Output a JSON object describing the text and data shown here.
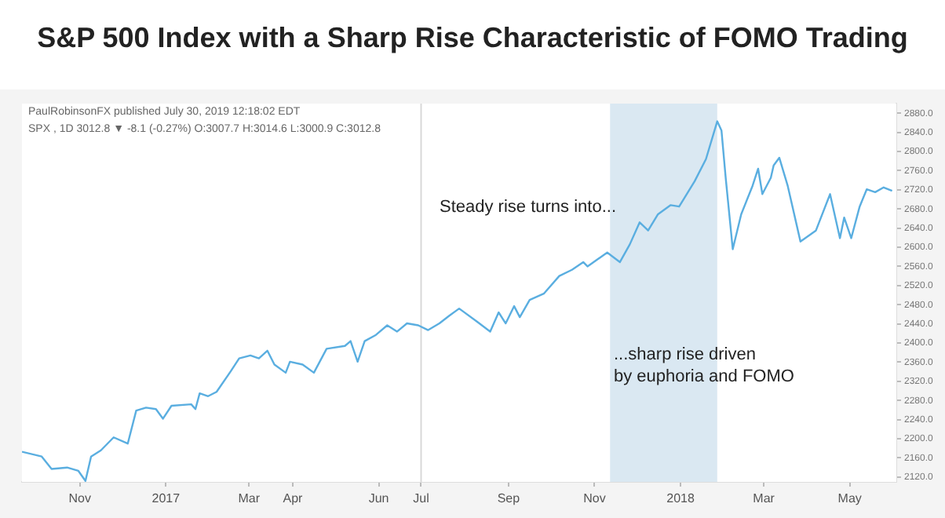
{
  "chart_data": {
    "type": "line",
    "title": "S&P 500 Index with a Sharp Rise Characteristic of FOMO Trading",
    "annotations": [
      "PaulRobinsonFX published July 30, 2019 12:18:02 EDT",
      "SPX , 1D 3012.8 ▼ -8.1 (-0.27%) O:3007.7 H:3014.6 L:3000.9 C:3012.8",
      "Steady rise turns into...",
      "...sharp rise driven\nby euphoria and FOMO"
    ],
    "x": [
      "2016-09-21",
      "2016-10-05",
      "2016-10-12",
      "2016-10-23",
      "2016-10-31",
      "2016-11-05",
      "2016-11-09",
      "2016-11-16",
      "2016-11-25",
      "2016-12-05",
      "2016-12-11",
      "2016-12-18",
      "2016-12-25",
      "2016-12-30",
      "2017-01-05",
      "2017-01-19",
      "2017-01-22",
      "2017-01-25",
      "2017-01-31",
      "2017-02-06",
      "2017-02-16",
      "2017-02-22",
      "2017-03-02",
      "2017-03-08",
      "2017-03-14",
      "2017-03-19",
      "2017-03-27",
      "2017-03-30",
      "2017-04-08",
      "2017-04-16",
      "2017-04-25",
      "2017-05-08",
      "2017-05-12",
      "2017-05-17",
      "2017-05-22",
      "2017-05-30",
      "2017-06-07",
      "2017-06-14",
      "2017-06-21",
      "2017-06-29",
      "2017-07-06",
      "2017-07-14",
      "2017-07-21",
      "2017-07-28",
      "2017-08-10",
      "2017-08-19",
      "2017-08-25",
      "2017-08-30",
      "2017-09-05",
      "2017-09-09",
      "2017-09-16",
      "2017-09-26",
      "2017-10-07",
      "2017-10-16",
      "2017-10-24",
      "2017-10-27",
      "2017-11-10",
      "2017-11-19",
      "2017-11-26",
      "2017-12-03",
      "2017-12-09",
      "2017-12-16",
      "2017-12-25",
      "2017-12-31",
      "2018-01-11",
      "2018-01-19",
      "2018-01-27",
      "2018-01-30",
      "2018-02-02",
      "2018-02-07",
      "2018-02-13",
      "2018-02-21",
      "2018-02-25",
      "2018-02-28",
      "2018-03-06",
      "2018-03-08",
      "2018-03-12",
      "2018-03-18",
      "2018-03-27",
      "2018-04-07",
      "2018-04-17",
      "2018-04-24",
      "2018-04-27",
      "2018-05-02",
      "2018-05-08",
      "2018-05-13",
      "2018-05-19",
      "2018-05-25",
      "2018-05-31"
    ],
    "series": [
      {
        "color": "#5aaee0",
        "values": [
          2173,
          2163,
          2137,
          2140,
          2133,
          2112,
          2163,
          2176,
          2203,
          2190,
          2259,
          2265,
          2262,
          2242,
          2269,
          2272,
          2262,
          2295,
          2289,
          2298,
          2341,
          2368,
          2374,
          2368,
          2384,
          2355,
          2338,
          2361,
          2355,
          2338,
          2388,
          2394,
          2404,
          2361,
          2404,
          2417,
          2437,
          2424,
          2441,
          2437,
          2427,
          2441,
          2457,
          2472,
          2444,
          2424,
          2464,
          2441,
          2477,
          2454,
          2490,
          2503,
          2540,
          2553,
          2569,
          2560,
          2589,
          2569,
          2606,
          2652,
          2635,
          2669,
          2688,
          2685,
          2738,
          2784,
          2863,
          2844,
          2745,
          2596,
          2669,
          2728,
          2764,
          2711,
          2745,
          2771,
          2787,
          2728,
          2612,
          2635,
          2711,
          2619,
          2662,
          2619,
          2685,
          2721,
          2715,
          2725,
          2718
        ]
      }
    ],
    "xlim": [
      "2016-09-21",
      "2018-06-03"
    ],
    "xticks": [
      {
        "value": "2016-11-01",
        "label": "Nov"
      },
      {
        "value": "2017-01-01",
        "label": "2017"
      },
      {
        "value": "2017-03-01",
        "label": "Mar"
      },
      {
        "value": "2017-04-01",
        "label": "Apr"
      },
      {
        "value": "2017-06-01",
        "label": "Jun"
      },
      {
        "value": "2017-07-01",
        "label": "Jul"
      },
      {
        "value": "2017-09-01",
        "label": "Sep"
      },
      {
        "value": "2017-11-01",
        "label": "Nov"
      },
      {
        "value": "2018-01-01",
        "label": "2018"
      },
      {
        "value": "2018-03-01",
        "label": "Mar"
      },
      {
        "value": "2018-05-01",
        "label": "May"
      }
    ],
    "ylim": [
      2110,
      2900
    ],
    "yticks": [
      {
        "value": 2120,
        "label": "2120.0"
      },
      {
        "value": 2160,
        "label": "2160.0"
      },
      {
        "value": 2200,
        "label": "2200.0"
      },
      {
        "value": 2240,
        "label": "2240.0"
      },
      {
        "value": 2280,
        "label": "2280.0"
      },
      {
        "value": 2320,
        "label": "2320.0"
      },
      {
        "value": 2360,
        "label": "2360.0"
      },
      {
        "value": 2400,
        "label": "2400.0"
      },
      {
        "value": 2440,
        "label": "2440.0"
      },
      {
        "value": 2480,
        "label": "2480.0"
      },
      {
        "value": 2520,
        "label": "2520.0"
      },
      {
        "value": 2560,
        "label": "2560.0"
      },
      {
        "value": 2600,
        "label": "2600.0"
      },
      {
        "value": 2640,
        "label": "2640.0"
      },
      {
        "value": 2680,
        "label": "2680.0"
      },
      {
        "value": 2720,
        "label": "2720.0"
      },
      {
        "value": 2760,
        "label": "2760.0"
      },
      {
        "value": 2800,
        "label": "2800.0"
      },
      {
        "value": 2840,
        "label": "2840.0"
      },
      {
        "value": 2880,
        "label": "2880.0"
      }
    ],
    "ref_lines": [
      {
        "axis": "x",
        "value": "2017-07-01",
        "color": "#d8d8d8"
      }
    ],
    "bands": [
      {
        "axis": "x",
        "from": "2017-11-12",
        "to": "2018-01-27",
        "color": "#dae8f2"
      }
    ],
    "legend": false,
    "marker": "none",
    "line_style": "solid"
  }
}
